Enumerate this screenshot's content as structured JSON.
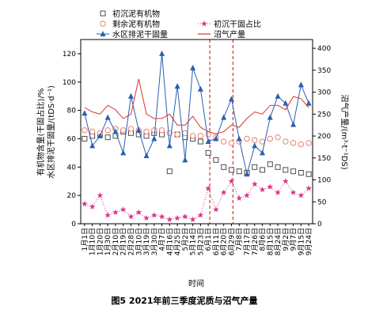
{
  "chart_data": {
    "type": "line",
    "title": "",
    "caption": "图5   2021年前三季度泥质与沼气产量",
    "xlabel": "时间",
    "ylabel_left": "有机物含量(干固占比)/%\n水区排泥干固量/(tDS·d⁻¹)",
    "ylabel_right": "沼气产量/(m³·t⁻¹DS)",
    "ylim_left": [
      0,
      130
    ],
    "yticks_left": [
      0,
      20,
      40,
      60,
      80,
      100,
      120
    ],
    "ylim_right": [
      0,
      420
    ],
    "yticks_right": [
      0,
      50,
      100,
      150,
      200,
      250,
      300,
      350,
      400
    ],
    "x": [
      "1月1日",
      "1月10日",
      "1月20日",
      "1月30日",
      "2月10日",
      "2月19日",
      "2月28日",
      "3月10日",
      "3月19日",
      "3月30日",
      "4月7日",
      "4月16日",
      "4月25日",
      "5月2日",
      "5月14日",
      "5月23日",
      "6月1日",
      "6月11日",
      "6月20日",
      "6月29日",
      "7月8日",
      "7月17日",
      "7月26日",
      "8月6日",
      "8月15日",
      "8月24日",
      "9月2日",
      "9月7日",
      "9月15日",
      "9月24日"
    ],
    "xtick_labels": [
      "1月1日",
      "1月10日",
      "1月20日",
      "1月30日",
      "2月10日",
      "2月19日",
      "2月28日",
      "3月10日",
      "3月19日",
      "3月30日",
      "4月7日",
      "4月16日",
      "4月25日",
      "5月2日",
      "5月14日",
      "5月23日",
      "6月1日",
      "6月11日",
      "6月20日",
      "6月29日",
      "7月8日",
      "7月17日",
      "7月26日",
      "8月6日",
      "8月15日",
      "8月24日",
      "9月2日",
      "9月7日",
      "9月15日",
      "9月24日"
    ],
    "legend": {
      "placement": "top"
    },
    "vlines": {
      "color": "#d9342b",
      "style": "dashed",
      "at_x": [
        "6月1日",
        "6月29日"
      ]
    },
    "series": [
      {
        "name": "初沉泥有机物",
        "axis": "left",
        "marker": "square-open",
        "color": "#4d4d4d",
        "line": false,
        "values": [
          60,
          62,
          63,
          61,
          62,
          65,
          64,
          63,
          62,
          64,
          63,
          37,
          63,
          61,
          60,
          58,
          50,
          45,
          40,
          38,
          37,
          36,
          40,
          38,
          42,
          40,
          38,
          37,
          36,
          35
        ]
      },
      {
        "name": "剩余泥有机物",
        "axis": "left",
        "marker": "circle-open",
        "color": "#e8826e",
        "line": false,
        "values": [
          66,
          65,
          64,
          66,
          67,
          66,
          67,
          66,
          65,
          66,
          66,
          64,
          63,
          64,
          62,
          62,
          63,
          61,
          58,
          57,
          58,
          60,
          59,
          58,
          60,
          61,
          58,
          57,
          56,
          57
        ]
      },
      {
        "name": "初沉干固占比",
        "axis": "left",
        "marker": "star",
        "color": "#d9368c",
        "line": "dotted",
        "values": [
          14,
          12,
          20,
          6,
          8,
          10,
          5,
          8,
          4,
          6,
          5,
          3,
          4,
          5,
          3,
          6,
          25,
          10,
          22,
          30,
          18,
          20,
          28,
          24,
          26,
          22,
          30,
          22,
          20,
          25
        ]
      },
      {
        "name": "水区排泥干固量",
        "axis": "left",
        "marker": "triangle-filled",
        "color": "#2a5fb0",
        "line": true,
        "values": [
          78,
          55,
          62,
          75,
          65,
          50,
          90,
          66,
          48,
          60,
          120,
          55,
          97,
          45,
          110,
          95,
          58,
          60,
          75,
          88,
          60,
          35,
          55,
          50,
          75,
          90,
          85,
          70,
          98,
          85
        ]
      },
      {
        "name": "沼气产量",
        "axis": "right",
        "marker": "none",
        "color": "#d9342b",
        "line": true,
        "values": [
          265,
          255,
          250,
          270,
          260,
          240,
          250,
          330,
          250,
          240,
          240,
          250,
          225,
          225,
          245,
          220,
          210,
          205,
          210,
          225,
          220,
          240,
          255,
          250,
          270,
          270,
          260,
          290,
          285,
          265
        ]
      }
    ]
  }
}
